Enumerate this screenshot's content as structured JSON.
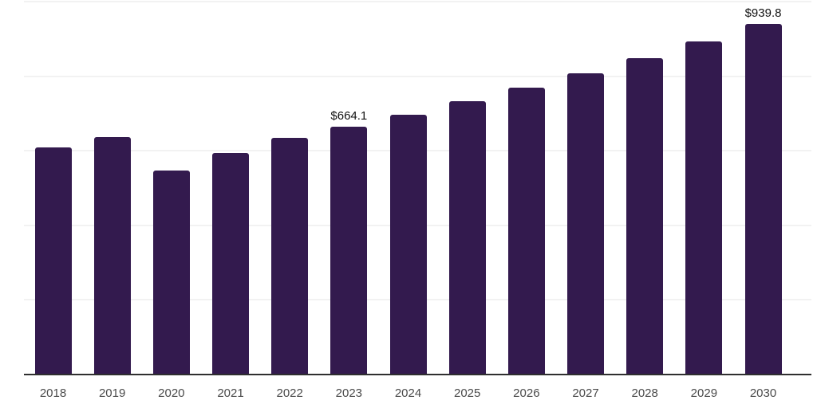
{
  "chart_data": {
    "type": "bar",
    "title": "",
    "xlabel": "",
    "ylabel": "",
    "unit_prefix": "$",
    "ylim": [
      0,
      1000
    ],
    "gridline_values": [
      200,
      400,
      600,
      800,
      1000
    ],
    "grid": "horizontal-only",
    "legend": "none",
    "categories": [
      "2018",
      "2019",
      "2020",
      "2021",
      "2022",
      "2023",
      "2024",
      "2025",
      "2026",
      "2027",
      "2028",
      "2029",
      "2030"
    ],
    "values": [
      610,
      637,
      548,
      594,
      635,
      664.1,
      696,
      732,
      770,
      808,
      849,
      893,
      939.8
    ],
    "data_labels": [
      "",
      "",
      "",
      "",
      "",
      "$664.1",
      "",
      "",
      "",
      "",
      "",
      "",
      "$939.8"
    ],
    "colors": {
      "bar": "#331a4e",
      "axis_line": "#2f2f2f",
      "gridline": "#f2f2f2",
      "tick_label": "#4a4a4a",
      "data_label": "#111111"
    }
  }
}
